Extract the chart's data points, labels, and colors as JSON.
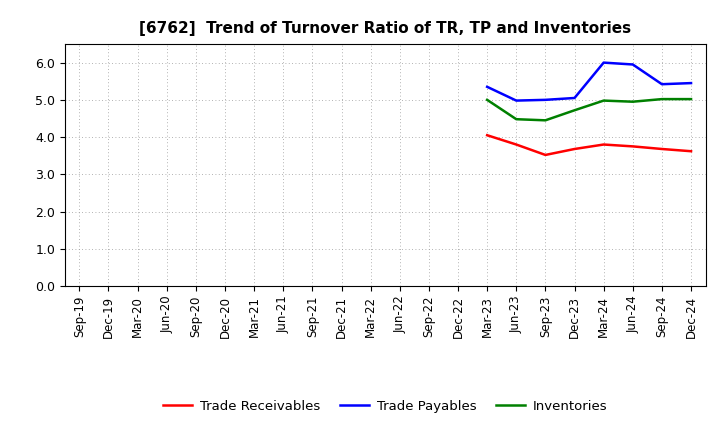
{
  "title": "[6762]  Trend of Turnover Ratio of TR, TP and Inventories",
  "x_labels": [
    "Sep-19",
    "Dec-19",
    "Mar-20",
    "Jun-20",
    "Sep-20",
    "Dec-20",
    "Mar-21",
    "Jun-21",
    "Sep-21",
    "Dec-21",
    "Mar-22",
    "Jun-22",
    "Sep-22",
    "Dec-22",
    "Mar-23",
    "Jun-23",
    "Sep-23",
    "Dec-23",
    "Mar-24",
    "Jun-24",
    "Sep-24",
    "Dec-24"
  ],
  "trade_receivables": [
    null,
    null,
    null,
    null,
    null,
    null,
    null,
    null,
    null,
    null,
    null,
    null,
    null,
    null,
    4.05,
    3.8,
    3.52,
    3.68,
    3.8,
    3.75,
    3.68,
    3.62
  ],
  "trade_payables": [
    null,
    null,
    null,
    null,
    null,
    null,
    null,
    null,
    null,
    null,
    null,
    null,
    null,
    null,
    5.35,
    4.98,
    5.0,
    5.05,
    6.0,
    5.95,
    5.42,
    5.45
  ],
  "inventories": [
    null,
    null,
    null,
    null,
    null,
    null,
    null,
    null,
    null,
    null,
    null,
    null,
    null,
    null,
    5.0,
    4.48,
    4.45,
    4.72,
    4.98,
    4.95,
    5.02,
    5.02
  ],
  "tr_color": "#ff0000",
  "tp_color": "#0000ff",
  "inv_color": "#008000",
  "ylim": [
    0.0,
    6.5
  ],
  "yticks": [
    0.0,
    1.0,
    2.0,
    3.0,
    4.0,
    5.0,
    6.0
  ],
  "ytick_labels": [
    "0.0",
    "1.0",
    "2.0",
    "3.0",
    "4.0",
    "5.0",
    "6.0"
  ],
  "background_color": "#ffffff",
  "grid_color": "#aaaaaa",
  "legend_labels": [
    "Trade Receivables",
    "Trade Payables",
    "Inventories"
  ],
  "title_fontsize": 11,
  "axis_fontsize": 8.5,
  "legend_fontsize": 9.5,
  "linewidth": 1.8
}
